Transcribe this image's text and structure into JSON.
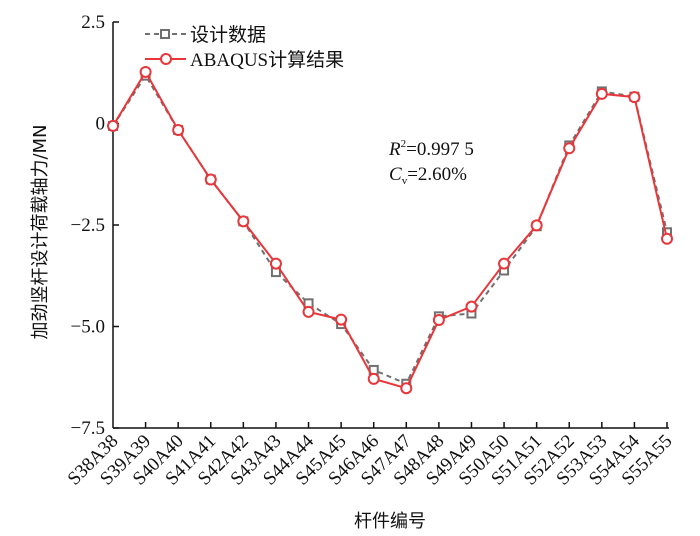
{
  "chart_data": {
    "type": "line",
    "title": "",
    "xlabel": "杆件编号",
    "ylabel": "加劲竖杆设计荷载轴力/MN",
    "categories": [
      "S38A38",
      "S39A39",
      "S40A40",
      "S41A41",
      "S42A42",
      "S43A43",
      "S44A44",
      "S45A45",
      "S46A46",
      "S47A47",
      "S48A48",
      "S49A49",
      "S50A50",
      "S51A51",
      "S52A52",
      "S53A53",
      "S54A54",
      "S55A55"
    ],
    "ylim": [
      -7.5,
      2.5
    ],
    "yticks": [
      2.5,
      0,
      -2.5,
      -5.0,
      -7.5
    ],
    "ytick_labels": [
      "2.5",
      "0",
      "−2.5",
      "−5.0",
      "−7.5"
    ],
    "grid": false,
    "legend_position": "top-left",
    "series": [
      {
        "name": "设计数据",
        "style": "dashed",
        "marker": "square",
        "color": "#707070",
        "values": [
          -0.06,
          1.18,
          -0.16,
          -1.38,
          -2.41,
          -3.66,
          -4.43,
          -4.94,
          -6.07,
          -6.41,
          -4.75,
          -4.68,
          -3.62,
          -2.53,
          -0.54,
          0.79,
          0.66,
          -2.68
        ]
      },
      {
        "name": "ABAQUS计算结果",
        "style": "solid",
        "marker": "circle",
        "color": "#e8363a",
        "values": [
          -0.06,
          1.27,
          -0.16,
          -1.38,
          -2.41,
          -3.45,
          -4.64,
          -4.83,
          -6.29,
          -6.52,
          -4.84,
          -4.51,
          -3.45,
          -2.51,
          -0.61,
          0.73,
          0.65,
          -2.84
        ]
      }
    ],
    "annotations": {
      "r2_label": "R",
      "r2_sup": "2",
      "r2_value": "=0.997 5",
      "cv_label": "C",
      "cv_sub": "v",
      "cv_value": "=2.60%"
    }
  }
}
